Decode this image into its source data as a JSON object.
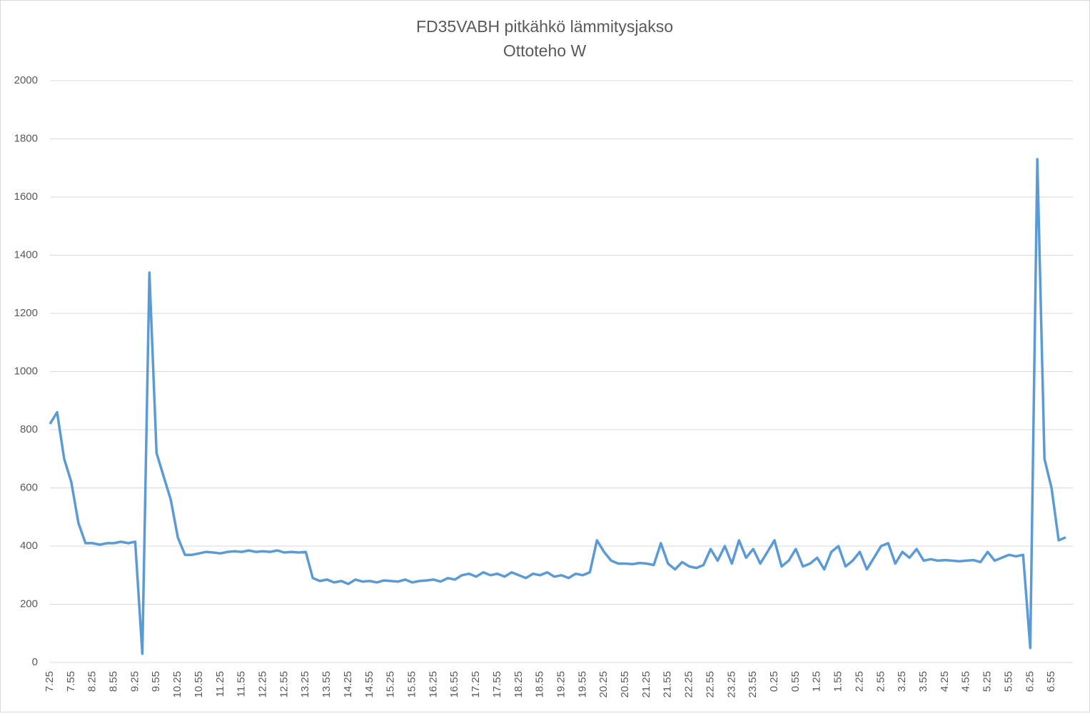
{
  "chart_data": {
    "type": "line",
    "title": "FD35VABH pitkähkö lämmitysjakso",
    "subtitle": "Ottoteho W",
    "categories": [
      "7.25",
      null,
      null,
      "7.55",
      null,
      null,
      "8.25",
      null,
      null,
      "8.55",
      null,
      null,
      "9.25",
      null,
      null,
      "9.55",
      null,
      null,
      "10.25",
      null,
      null,
      "10.55",
      null,
      null,
      "11.25",
      null,
      null,
      "11.55",
      null,
      null,
      "12.25",
      null,
      null,
      "12.55",
      null,
      null,
      "13.25",
      null,
      null,
      "13.55",
      null,
      null,
      "14.25",
      null,
      null,
      "14.55",
      null,
      null,
      "15.25",
      null,
      null,
      "15.55",
      null,
      null,
      "16.25",
      null,
      null,
      "16.55",
      null,
      null,
      "17.25",
      null,
      null,
      "17.55",
      null,
      null,
      "18.25",
      null,
      null,
      "18.55",
      null,
      null,
      "19.25",
      null,
      null,
      "19.55",
      null,
      null,
      "20.25",
      null,
      null,
      "20.55",
      null,
      null,
      "21.25",
      null,
      null,
      "21.55",
      null,
      null,
      "22.25",
      null,
      null,
      "22.55",
      null,
      null,
      "23.25",
      null,
      null,
      "23.55",
      null,
      null,
      "0.25",
      null,
      null,
      "0.55",
      null,
      null,
      "1.25",
      null,
      null,
      "1.55",
      null,
      null,
      "2.25",
      null,
      null,
      "2.55",
      null,
      null,
      "3.25",
      null,
      null,
      "3.55",
      null,
      null,
      "4.25",
      null,
      null,
      "4.55",
      null,
      null,
      "5.25",
      null,
      null,
      "5.55",
      null,
      null,
      "6.25",
      null,
      null,
      "6.55",
      null,
      null
    ],
    "series": [
      {
        "name": "Ottoteho W",
        "color": "#5b9bd5",
        "values": [
          820,
          860,
          700,
          620,
          480,
          410,
          410,
          405,
          410,
          410,
          415,
          410,
          415,
          30,
          1340,
          720,
          640,
          560,
          430,
          370,
          370,
          375,
          380,
          378,
          375,
          380,
          382,
          380,
          385,
          380,
          382,
          380,
          385,
          378,
          380,
          378,
          380,
          290,
          280,
          285,
          275,
          280,
          270,
          285,
          278,
          280,
          275,
          282,
          280,
          278,
          285,
          275,
          280,
          282,
          285,
          278,
          290,
          285,
          300,
          305,
          295,
          310,
          300,
          305,
          295,
          310,
          300,
          290,
          305,
          300,
          310,
          295,
          300,
          290,
          305,
          300,
          310,
          420,
          380,
          350,
          340,
          340,
          338,
          342,
          340,
          335,
          410,
          340,
          320,
          345,
          330,
          325,
          335,
          390,
          350,
          400,
          340,
          420,
          360,
          390,
          340,
          380,
          420,
          330,
          350,
          390,
          330,
          340,
          360,
          320,
          380,
          400,
          330,
          350,
          380,
          320,
          360,
          400,
          410,
          340,
          380,
          360,
          390,
          350,
          355,
          350,
          352,
          350,
          348,
          350,
          352,
          345,
          380,
          350,
          360,
          370,
          365,
          370,
          50,
          1730,
          700,
          600,
          420,
          430
        ]
      }
    ],
    "ylim": [
      0,
      2000
    ],
    "yticks": [
      0,
      200,
      400,
      600,
      800,
      1000,
      1200,
      1400,
      1600,
      1800,
      2000
    ],
    "grid": true
  }
}
